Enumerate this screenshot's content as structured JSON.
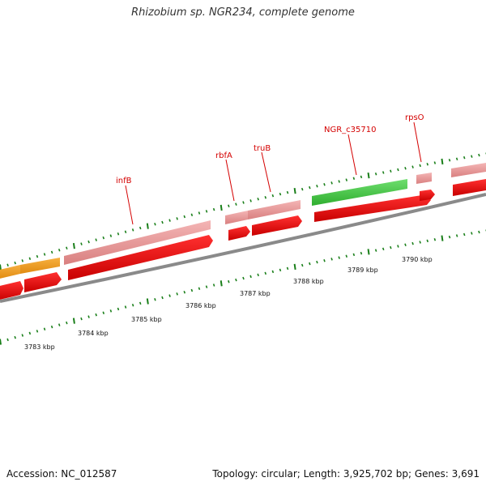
{
  "title": "Rhizobium sp. NGR234, complete genome",
  "footer": {
    "accession": "Accession: NC_012587",
    "info": "Topology: circular; Length: 3,925,702 bp; Genes: 3,691"
  },
  "genes": [
    {
      "name": "",
      "strand": "upper",
      "color": "#f29a1a"
    },
    {
      "name": "",
      "strand": "upper",
      "color": "#f29a1a"
    },
    {
      "name": "infB",
      "strand": "upper",
      "color": "#ee8f8f"
    },
    {
      "name": "rbfA",
      "strand": "upper",
      "color": "#ee8f8f"
    },
    {
      "name": "truB",
      "strand": "upper",
      "color": "#ee8f8f"
    },
    {
      "name": "NGR_c35710",
      "strand": "upper",
      "color": "#44c444"
    },
    {
      "name": "rpsO",
      "strand": "upper",
      "color": "#ee8f8f"
    }
  ],
  "scale": {
    "labels": [
      "3783 kbp",
      "3784 kbp",
      "3785 kbp",
      "3786 kbp",
      "3787 kbp",
      "3788 kbp",
      "3789 kbp",
      "3790 kbp"
    ],
    "unit": "kbp"
  },
  "colors": {
    "cds_red": "#e50000",
    "backbone": "#8a8a8a",
    "tick_green": "#1a7f1a",
    "label_red": "#d40000"
  }
}
